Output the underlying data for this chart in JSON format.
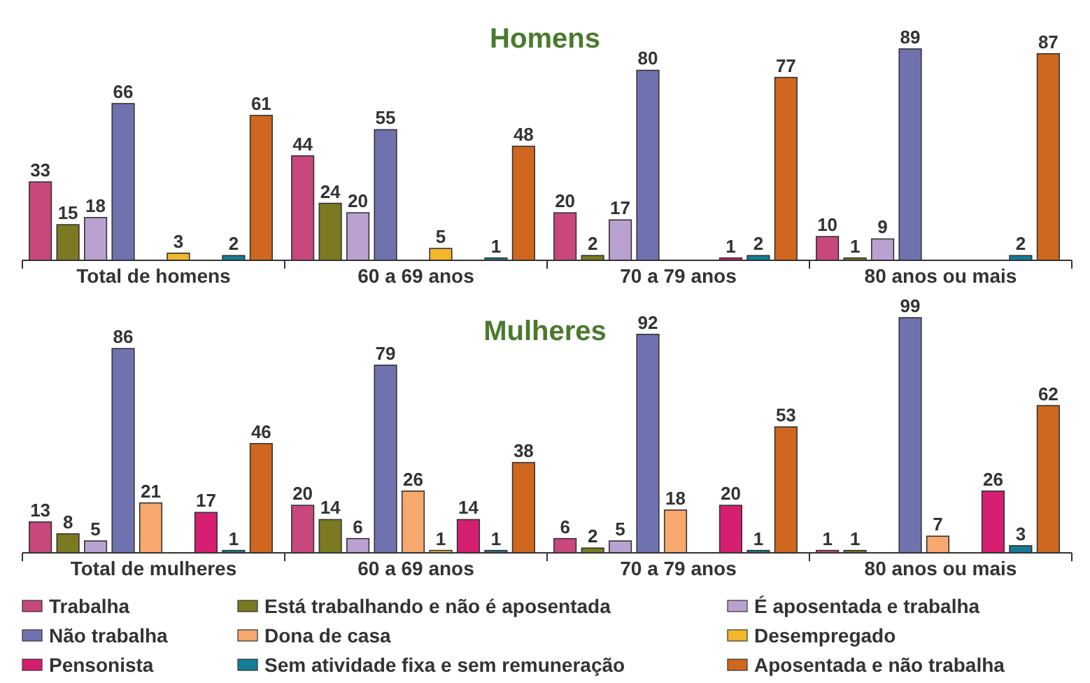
{
  "chart_data": [
    {
      "type": "bar",
      "title": "Homens",
      "categories": [
        "Total de homens",
        "60 a 69 anos",
        "70 a 79 anos",
        "80 anos ou mais"
      ],
      "data_labels": true,
      "legend": false,
      "series": [
        {
          "color": "#c8487e",
          "values": [
            33,
            44,
            20,
            10
          ]
        },
        {
          "color": "#7b7a22",
          "values": [
            15,
            24,
            2,
            1
          ]
        },
        {
          "color": "#b9a2d0",
          "values": [
            18,
            20,
            17,
            9
          ]
        },
        {
          "color": "#7072b0",
          "values": [
            66,
            55,
            80,
            89
          ]
        },
        {
          "values": [
            null,
            null,
            null,
            null
          ]
        },
        {
          "color": "#f2b72a",
          "values": [
            3,
            5,
            null,
            null
          ]
        },
        {
          "color": "#d61f70",
          "values": [
            null,
            null,
            1,
            null
          ]
        },
        {
          "color": "#137c96",
          "values": [
            2,
            1,
            2,
            2
          ]
        },
        {
          "color": "#d0671f",
          "values": [
            61,
            48,
            77,
            87
          ]
        }
      ]
    },
    {
      "type": "bar",
      "title": "Mulheres",
      "categories": [
        "Total de mulheres",
        "60 a 69 anos",
        "70 a 79 anos",
        "80 anos ou mais"
      ],
      "data_labels": true,
      "legend": "bottom",
      "series": [
        {
          "name": "Trabalha",
          "color": "#c8487e",
          "values": [
            13,
            20,
            6,
            1
          ]
        },
        {
          "name": "Está trabalhando e não é aposentada",
          "color": "#7b7a22",
          "values": [
            8,
            14,
            2,
            1
          ]
        },
        {
          "name": "É aposentada e trabalha",
          "color": "#b9a2d0",
          "values": [
            5,
            6,
            5,
            null
          ]
        },
        {
          "name": "Não trabalha",
          "color": "#7072b0",
          "values": [
            86,
            79,
            92,
            99
          ]
        },
        {
          "name": "Dona de casa",
          "color": "#f6a86e",
          "values": [
            21,
            26,
            18,
            7
          ]
        },
        {
          "name": "Desempregado",
          "color": "#f2b72a",
          "values": [
            null,
            1,
            null,
            null
          ]
        },
        {
          "name": "Pensonista",
          "color": "#d61f70",
          "values": [
            17,
            14,
            20,
            26
          ]
        },
        {
          "name": "Sem atividade fixa e sem remuneração",
          "color": "#137c96",
          "values": [
            1,
            1,
            1,
            3
          ]
        },
        {
          "name": "Aposentada e não trabalha",
          "color": "#d0671f",
          "values": [
            46,
            38,
            53,
            62
          ]
        }
      ]
    }
  ]
}
